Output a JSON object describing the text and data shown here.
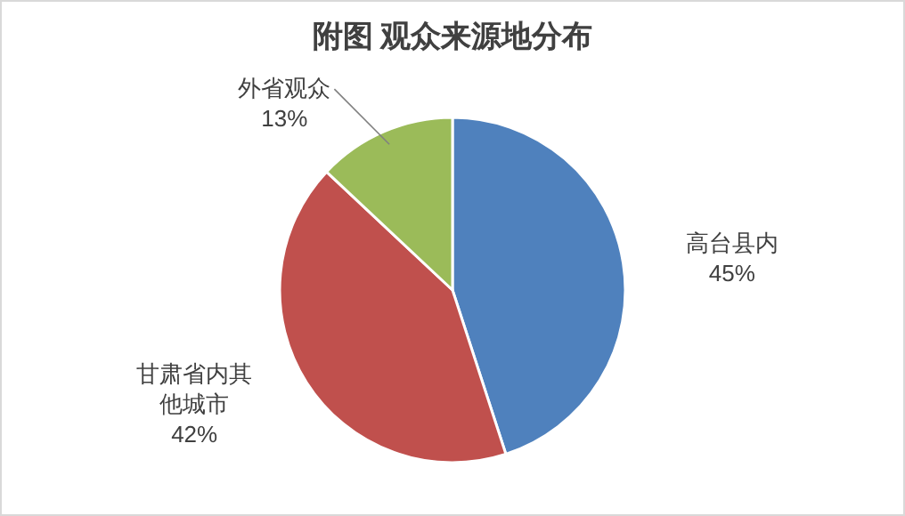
{
  "chart_data": {
    "type": "pie",
    "title": "附图 观众来源地分布",
    "categories": [
      "高台县内",
      "甘肃省内其他城市",
      "外省观众"
    ],
    "values": [
      45,
      42,
      13
    ],
    "colors": [
      "#4f81bd",
      "#c0504d",
      "#9bbb59"
    ],
    "value_labels": [
      "45%",
      "42%",
      "13%"
    ]
  }
}
